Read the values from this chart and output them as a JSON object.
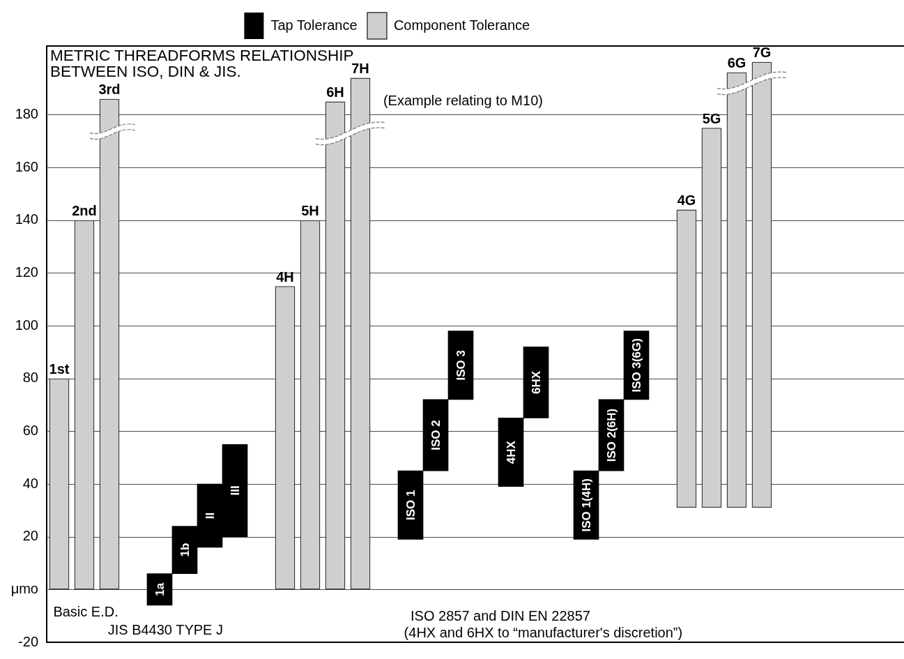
{
  "chart_data": {
    "type": "bar",
    "title": "METRIC THREADFORMS RELATIONSHIP BETWEEN ISO, DIN & JIS.",
    "subtitle": "(Example relating to M10)",
    "categories": [
      "1st",
      "2nd",
      "3rd",
      null,
      "1a",
      "1b",
      "II",
      "III",
      null,
      "4H",
      "5H",
      "6H",
      "7H",
      null,
      "ISO 1",
      "ISO 2",
      "ISO 3",
      null,
      "4HX",
      "6HX",
      null,
      "ISO 1(4H)",
      "ISO 2(6H)",
      "ISO 3(6G)",
      null,
      "4G",
      "5G",
      "6G",
      "7G"
    ],
    "series": [
      {
        "name": "Tap Tolerance",
        "color": "#000000",
        "values": [
          null,
          null,
          null,
          null,
          12,
          18,
          24,
          35,
          null,
          null,
          null,
          null,
          null,
          null,
          26,
          27,
          26,
          null,
          26,
          27,
          null,
          26,
          27,
          26,
          null,
          null,
          null,
          null,
          null
        ],
        "base": [
          null,
          null,
          null,
          null,
          -6,
          6,
          16,
          20,
          null,
          null,
          null,
          null,
          null,
          null,
          19,
          45,
          72,
          null,
          39,
          65,
          null,
          19,
          45,
          72,
          null,
          null,
          null,
          null,
          null
        ]
      },
      {
        "name": "Component Tolerance",
        "color": "#cfcfcf",
        "values": [
          80,
          140,
          186,
          null,
          null,
          null,
          null,
          null,
          null,
          115,
          140,
          185,
          194,
          null,
          null,
          null,
          null,
          null,
          null,
          null,
          null,
          null,
          null,
          null,
          null,
          113,
          144,
          165,
          169
        ],
        "base": [
          0,
          0,
          0,
          null,
          null,
          null,
          null,
          null,
          null,
          0,
          0,
          0,
          0,
          null,
          null,
          null,
          null,
          null,
          null,
          null,
          null,
          null,
          null,
          null,
          null,
          31,
          31,
          31,
          31
        ]
      }
    ],
    "ylim": [
      -20,
      206
    ],
    "yticks": [
      -20,
      {
        "value": 0,
        "label": "μmo"
      },
      20,
      40,
      60,
      80,
      100,
      120,
      140,
      160,
      180
    ],
    "grid": "y",
    "legend": "top",
    "annotations": [
      "Basic E.D.",
      "JIS B4430 TYPE J",
      "ISO 2857 and DIN EN 22857",
      "(4HX and 6HX to “manufacturer's discretion”)"
    ]
  }
}
